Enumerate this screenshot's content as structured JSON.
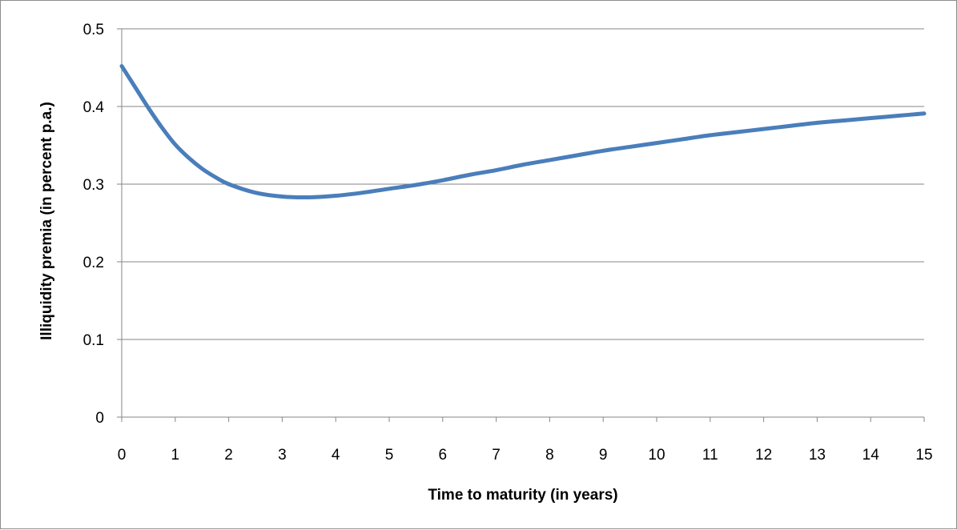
{
  "chart_data": {
    "type": "line",
    "title": "",
    "xlabel": "Time to maturity (in years)",
    "ylabel": "Illiquidity premia (in percent p.a.)",
    "xlim": [
      0,
      15
    ],
    "ylim": [
      0,
      0.5
    ],
    "x_ticks": [
      "0",
      "1",
      "2",
      "3",
      "4",
      "5",
      "6",
      "7",
      "8",
      "9",
      "10",
      "11",
      "12",
      "13",
      "14",
      "15"
    ],
    "y_ticks": [
      "0",
      "0.1",
      "0.2",
      "0.3",
      "0.4",
      "0.5"
    ],
    "grid": "horizontal",
    "legend": "none",
    "series": [
      {
        "color": "#4a7ebb",
        "x": [
          0,
          0.25,
          0.5,
          0.75,
          1,
          1.25,
          1.5,
          1.75,
          2,
          2.5,
          3,
          3.5,
          4,
          4.5,
          5,
          5.5,
          6,
          6.5,
          7,
          7.5,
          8,
          8.5,
          9,
          9.5,
          10,
          10.5,
          11,
          11.5,
          12,
          12.5,
          13,
          13.5,
          14,
          14.5,
          15
        ],
        "y": [
          0.452,
          0.425,
          0.398,
          0.373,
          0.351,
          0.334,
          0.32,
          0.309,
          0.3,
          0.289,
          0.284,
          0.283,
          0.285,
          0.289,
          0.294,
          0.299,
          0.305,
          0.312,
          0.318,
          0.325,
          0.331,
          0.337,
          0.343,
          0.348,
          0.353,
          0.358,
          0.363,
          0.367,
          0.371,
          0.375,
          0.379,
          0.382,
          0.385,
          0.388,
          0.391
        ]
      }
    ]
  }
}
